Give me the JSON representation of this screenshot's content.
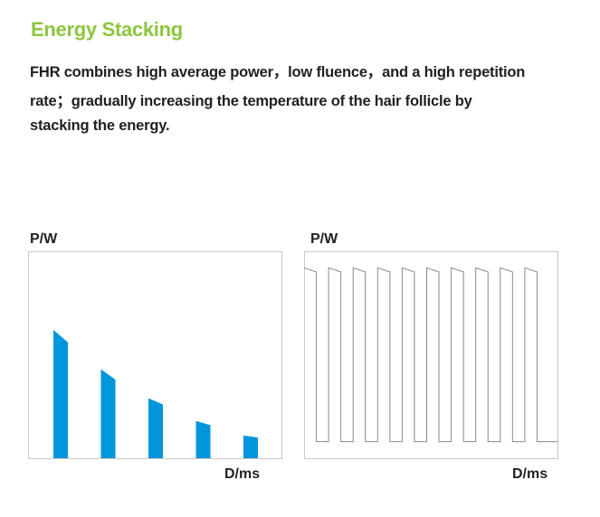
{
  "title": "Energy Stacking",
  "body_lines": [
    "FHR combines high average power，low fluence，and a high repetition",
    "rate；gradually increasing the temperature of the hair follicle by",
    "stacking the energy."
  ],
  "colors": {
    "title": "#8cc63e",
    "bar": "#0096db",
    "text": "#231f20",
    "frame": "#c8c8c8",
    "pulse": "#8a8a8a"
  },
  "chart_data": [
    {
      "type": "bar",
      "ylabel": "P/W",
      "xlabel": "D/ms",
      "description_values": "relative power of successive pulses (fraction of frame height), left/right edge of sloped tops",
      "values_left": [
        0.62,
        0.43,
        0.29,
        0.18,
        0.11
      ],
      "values_right": [
        0.56,
        0.38,
        0.26,
        0.16,
        0.1
      ],
      "ylim": [
        0,
        1
      ]
    },
    {
      "type": "line",
      "ylabel": "P/W",
      "xlabel": "D/ms",
      "pulse_count": 10,
      "high_level_start": 0.92,
      "high_level_end": 0.9,
      "low_level": 0.08,
      "duty_cycle": 0.5,
      "ylim": [
        0,
        1
      ]
    }
  ]
}
